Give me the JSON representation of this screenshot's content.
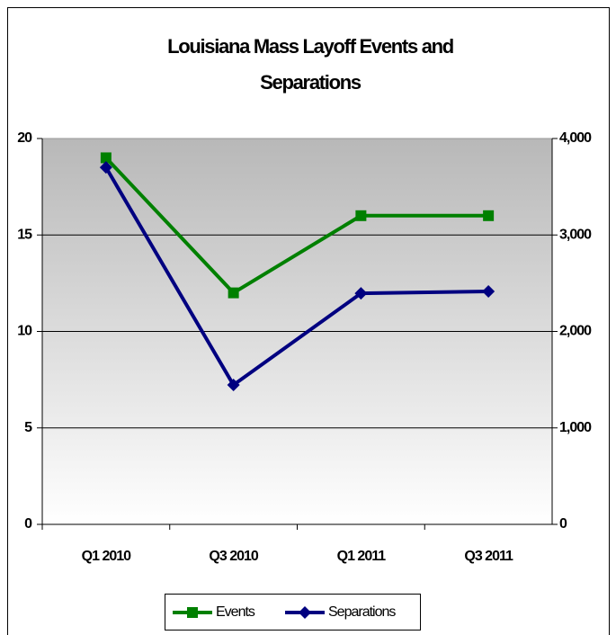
{
  "chart_data": {
    "type": "line",
    "title": "Louisiana Mass Layoff Events and Separations",
    "categories": [
      "Q1 2010",
      "Q3 2010",
      "Q1 2011",
      "Q3 2011"
    ],
    "series": [
      {
        "name": "Events",
        "color": "#008000",
        "marker": "square",
        "values": [
          19,
          12,
          16,
          16
        ]
      },
      {
        "name": "Separations",
        "color": "#000080",
        "marker": "diamond",
        "axis": "y2",
        "values": [
          3700,
          1445,
          2395,
          2415
        ]
      }
    ],
    "ylim": [
      0,
      20
    ],
    "yticks": [
      0,
      5,
      10,
      15,
      20
    ],
    "y2lim": [
      0,
      4000
    ],
    "y2ticks": [
      0,
      {
        "value": 1000,
        "label": "1,000"
      },
      {
        "value": 2000,
        "label": "2,000"
      },
      {
        "value": 3000,
        "label": "3,000"
      },
      {
        "value": 4000,
        "label": "4,000"
      }
    ],
    "grid": true,
    "legend": "bottom"
  }
}
